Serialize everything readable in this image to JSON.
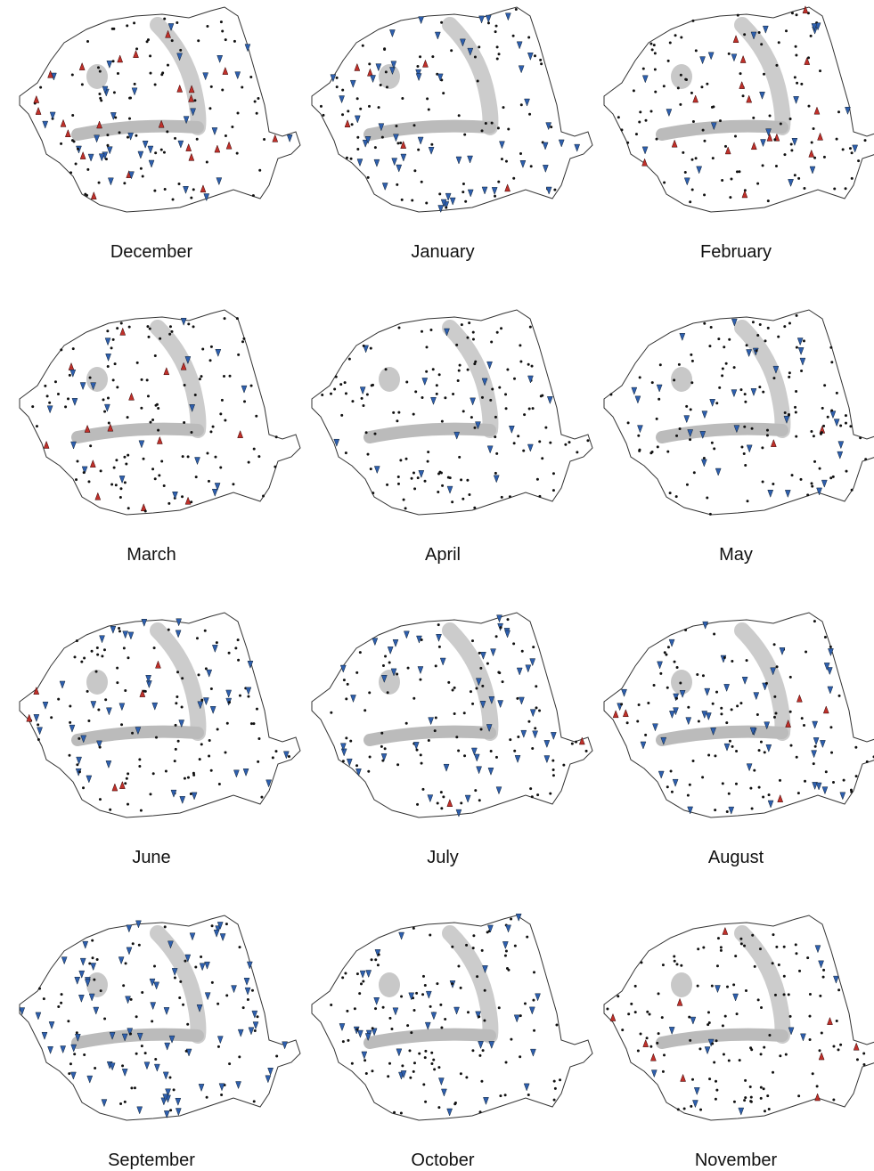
{
  "panels": [
    {
      "label": "December"
    },
    {
      "label": "January"
    },
    {
      "label": "February"
    },
    {
      "label": "March"
    },
    {
      "label": "April"
    },
    {
      "label": "May"
    },
    {
      "label": "June"
    },
    {
      "label": "July"
    },
    {
      "label": "August"
    },
    {
      "label": "September"
    },
    {
      "label": "October"
    },
    {
      "label": "November"
    }
  ]
}
